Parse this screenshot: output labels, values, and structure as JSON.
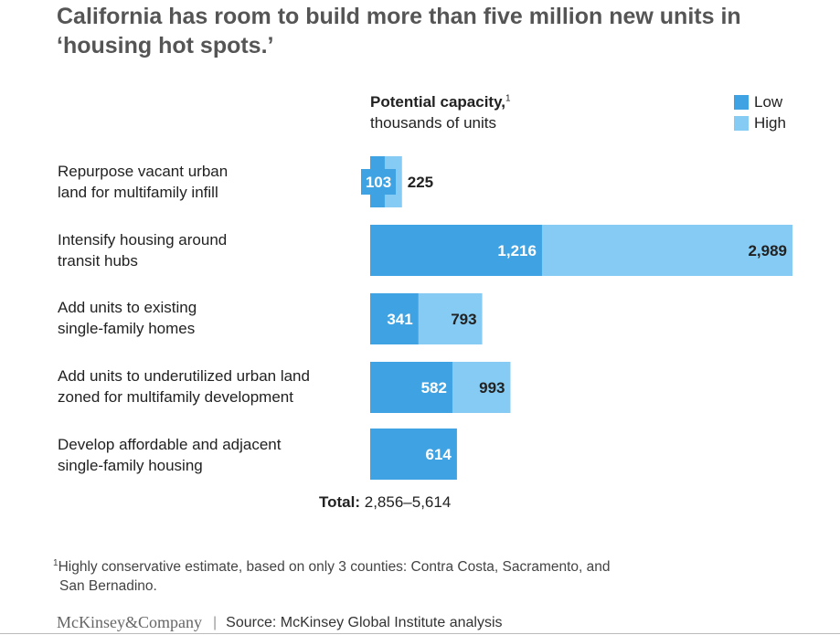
{
  "title": "California has room to build more than five million new units in ‘housing hot spots.’",
  "axis_caption": {
    "line1": "Potential capacity,",
    "footnote_mark": "1",
    "line2": "thousands of units"
  },
  "legend": [
    {
      "label": "Low",
      "color": "#3FA3E3"
    },
    {
      "label": "High",
      "color": "#86CBF3"
    }
  ],
  "chart_data": {
    "type": "bar",
    "orientation": "horizontal",
    "stacked": "overlay",
    "categories": [
      [
        "Repurpose vacant urban",
        "land for multifamily infill"
      ],
      [
        "Intensify housing around",
        "transit hubs"
      ],
      [
        "Add units to existing",
        "single-family homes"
      ],
      [
        "Add units to underutilized urban land",
        "zoned for multifamily development"
      ],
      [
        "Develop affordable and adjacent",
        "single-family housing"
      ]
    ],
    "series": [
      {
        "name": "Low",
        "values": [
          103,
          1216,
          341,
          582,
          614
        ],
        "labels": [
          "103",
          "1,216",
          "341",
          "582",
          "614"
        ]
      },
      {
        "name": "High",
        "values": [
          225,
          2989,
          793,
          993,
          null
        ],
        "labels": [
          "225",
          "2,989",
          "793",
          "993",
          ""
        ]
      }
    ],
    "xlim": [
      0,
      2989
    ]
  },
  "total": {
    "label": "Total:",
    "value": "2,856–5,614"
  },
  "footnote": {
    "mark": "1",
    "line1": "Highly conservative estimate, based on only 3 counties: Contra Costa, Sacramento, and",
    "line2": "San Bernadino."
  },
  "footer": {
    "brand": "McKinsey&Company",
    "source": "Source: McKinsey Global Institute analysis"
  }
}
